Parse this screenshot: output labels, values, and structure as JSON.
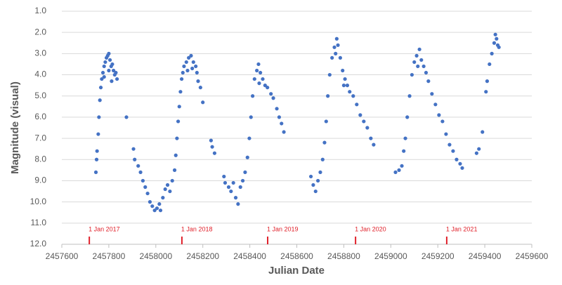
{
  "chart_data": {
    "type": "scatter",
    "x_label": "Julian Date",
    "y_label": "Magnitude (visual)",
    "xlim": [
      2457600,
      2459600
    ],
    "xticks": [
      2457600,
      2457800,
      2458000,
      2458200,
      2458400,
      2458600,
      2458800,
      2459000,
      2459200,
      2459400,
      2459600
    ],
    "ylim": [
      1,
      12
    ],
    "y_inverted": true,
    "yticks": [
      {
        "value": 1,
        "label": "1.0"
      },
      {
        "value": 2,
        "label": "2.0"
      },
      {
        "value": 3,
        "label": "3.0"
      },
      {
        "value": 4,
        "label": "4.0"
      },
      {
        "value": 5,
        "label": "5.0"
      },
      {
        "value": 6,
        "label": "6.0"
      },
      {
        "value": 7,
        "label": "7.0"
      },
      {
        "value": 8,
        "label": "8.0"
      },
      {
        "value": 9,
        "label": "9.0"
      },
      {
        "value": 10,
        "label": "10.0"
      },
      {
        "value": 11,
        "label": "11.0"
      },
      {
        "value": 12,
        "label": "12.0"
      }
    ],
    "grid": true,
    "color": "#4472c4",
    "annotation_color": "#e0202a",
    "annotations": [
      {
        "text": "1 Jan 2017",
        "x": 2457717
      },
      {
        "text": "1 Jan 2018",
        "x": 2458111
      },
      {
        "text": "1 Jan 2019",
        "x": 2458476
      },
      {
        "text": "1 Jan 2020",
        "x": 2458850
      },
      {
        "text": "1 Jan 2021",
        "x": 2459238
      }
    ],
    "x": [
      2457745,
      2457748,
      2457750,
      2457755,
      2457758,
      2457762,
      2457766,
      2457770,
      2457775,
      2457780,
      2457785,
      2457790,
      2457795,
      2457800,
      2457805,
      2457810,
      2457815,
      2457820,
      2457825,
      2457830,
      2457835,
      2457780,
      2457800,
      2457812,
      2457875,
      2457905,
      2457910,
      2457925,
      2457935,
      2457945,
      2457955,
      2457965,
      2457975,
      2457985,
      2457995,
      2458005,
      2458015,
      2458020,
      2458030,
      2458040,
      2458050,
      2458060,
      2458070,
      2458080,
      2458085,
      2458090,
      2458095,
      2458100,
      2458105,
      2458110,
      2458115,
      2458120,
      2458130,
      2458140,
      2458150,
      2458160,
      2458170,
      2458175,
      2458180,
      2458190,
      2458200,
      2458135,
      2458155,
      2458235,
      2458240,
      2458250,
      2458290,
      2458295,
      2458310,
      2458320,
      2458330,
      2458340,
      2458350,
      2458360,
      2458370,
      2458380,
      2458390,
      2458398,
      2458405,
      2458412,
      2458420,
      2458430,
      2458437,
      2458445,
      2458455,
      2458465,
      2458475,
      2458490,
      2458500,
      2458515,
      2458525,
      2458535,
      2458545,
      2458440,
      2458660,
      2458670,
      2458680,
      2458690,
      2458700,
      2458710,
      2458718,
      2458725,
      2458732,
      2458740,
      2458750,
      2458760,
      2458770,
      2458775,
      2458785,
      2458795,
      2458805,
      2458815,
      2458825,
      2458840,
      2458855,
      2458870,
      2458885,
      2458900,
      2458915,
      2458927,
      2458765,
      2458800,
      2459020,
      2459035,
      2459047,
      2459055,
      2459062,
      2459070,
      2459080,
      2459090,
      2459100,
      2459110,
      2459122,
      2459130,
      2459140,
      2459150,
      2459160,
      2459175,
      2459190,
      2459205,
      2459220,
      2459235,
      2459250,
      2459265,
      2459280,
      2459295,
      2459304,
      2459115,
      2459365,
      2459375,
      2459390,
      2459405,
      2459410,
      2459420,
      2459430,
      2459440,
      2459445,
      2459450,
      2459455,
      2459460
    ],
    "values": [
      8.6,
      8.0,
      7.6,
      6.8,
      6.0,
      5.2,
      4.6,
      4.2,
      3.9,
      3.6,
      3.4,
      3.2,
      3.1,
      3.0,
      3.3,
      3.6,
      3.5,
      3.8,
      4.0,
      3.9,
      4.2,
      4.1,
      3.8,
      4.3,
      6.0,
      7.5,
      8.0,
      8.3,
      8.6,
      9.0,
      9.3,
      9.6,
      10.0,
      10.2,
      10.4,
      10.3,
      10.1,
      10.4,
      9.8,
      9.4,
      9.2,
      9.5,
      9.0,
      8.5,
      7.8,
      7.0,
      6.2,
      5.5,
      4.8,
      4.2,
      3.9,
      3.6,
      3.4,
      3.2,
      3.1,
      3.4,
      3.6,
      3.9,
      4.3,
      4.6,
      5.3,
      3.8,
      3.7,
      7.1,
      7.4,
      7.7,
      8.8,
      9.1,
      9.3,
      9.5,
      9.1,
      9.8,
      10.1,
      9.3,
      9.0,
      8.6,
      7.9,
      7.0,
      6.0,
      5.0,
      4.2,
      3.8,
      3.5,
      3.9,
      4.2,
      4.5,
      4.6,
      4.9,
      5.1,
      5.6,
      6.0,
      6.3,
      6.7,
      4.4,
      8.8,
      9.2,
      9.5,
      9.0,
      8.6,
      8.0,
      7.2,
      6.2,
      5.0,
      4.0,
      3.2,
      2.7,
      2.3,
      2.6,
      3.2,
      3.8,
      4.2,
      4.5,
      4.8,
      5.0,
      5.4,
      5.9,
      6.2,
      6.5,
      7.0,
      7.3,
      3.0,
      4.5,
      8.6,
      8.5,
      8.3,
      7.6,
      7.0,
      6.0,
      5.0,
      4.0,
      3.4,
      3.1,
      2.8,
      3.3,
      3.6,
      3.9,
      4.3,
      4.9,
      5.4,
      5.9,
      6.2,
      6.8,
      7.3,
      7.6,
      8.0,
      8.2,
      8.4,
      3.6,
      7.7,
      7.5,
      6.7,
      4.8,
      4.3,
      3.5,
      3.0,
      2.5,
      2.1,
      2.3,
      2.6,
      2.7
    ]
  }
}
